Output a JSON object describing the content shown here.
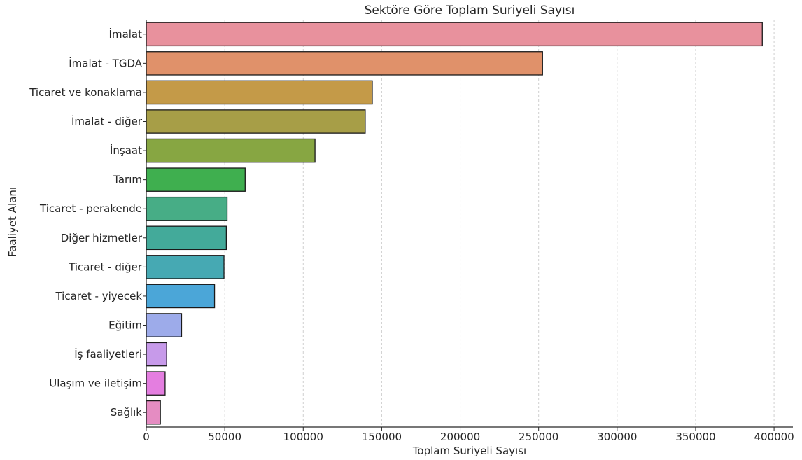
{
  "chart_data": {
    "type": "bar",
    "orientation": "horizontal",
    "title": "Sektöre Göre Toplam Suriyeli Sayısı",
    "xlabel": "Toplam Suriyeli Sayısı",
    "ylabel": "Faaliyet Alanı",
    "xlim": [
      0,
      412000
    ],
    "xticks": [
      0,
      50000,
      100000,
      150000,
      200000,
      250000,
      300000,
      350000,
      400000
    ],
    "xtick_labels": [
      "0",
      "50000",
      "100000",
      "150000",
      "200000",
      "250000",
      "300000",
      "350000",
      "400000"
    ],
    "grid": "x-dashed",
    "categories": [
      "İmalat",
      "İmalat - TGDA",
      "Ticaret ve konaklama",
      "İmalat - diğer",
      "İnşaat",
      "Tarım",
      "Ticaret - perakende",
      "Diğer hizmetler",
      "Ticaret - diğer",
      "Ticaret - yiyecek",
      "Eğitim",
      "İş faaliyetleri",
      "Ulaşım ve iletişim",
      "Sağlık"
    ],
    "values": [
      392500,
      252500,
      144000,
      139500,
      107500,
      63000,
      51500,
      51000,
      49500,
      43500,
      22500,
      13000,
      12000,
      9000
    ],
    "colors": [
      "#E8919D",
      "#E0916A",
      "#C49A48",
      "#A79E47",
      "#87A642",
      "#3FAF4F",
      "#47AD86",
      "#43AA9A",
      "#46A9B3",
      "#4BA6D8",
      "#9DABEA",
      "#C79AEA",
      "#E47EE0",
      "#E58CC2"
    ]
  }
}
